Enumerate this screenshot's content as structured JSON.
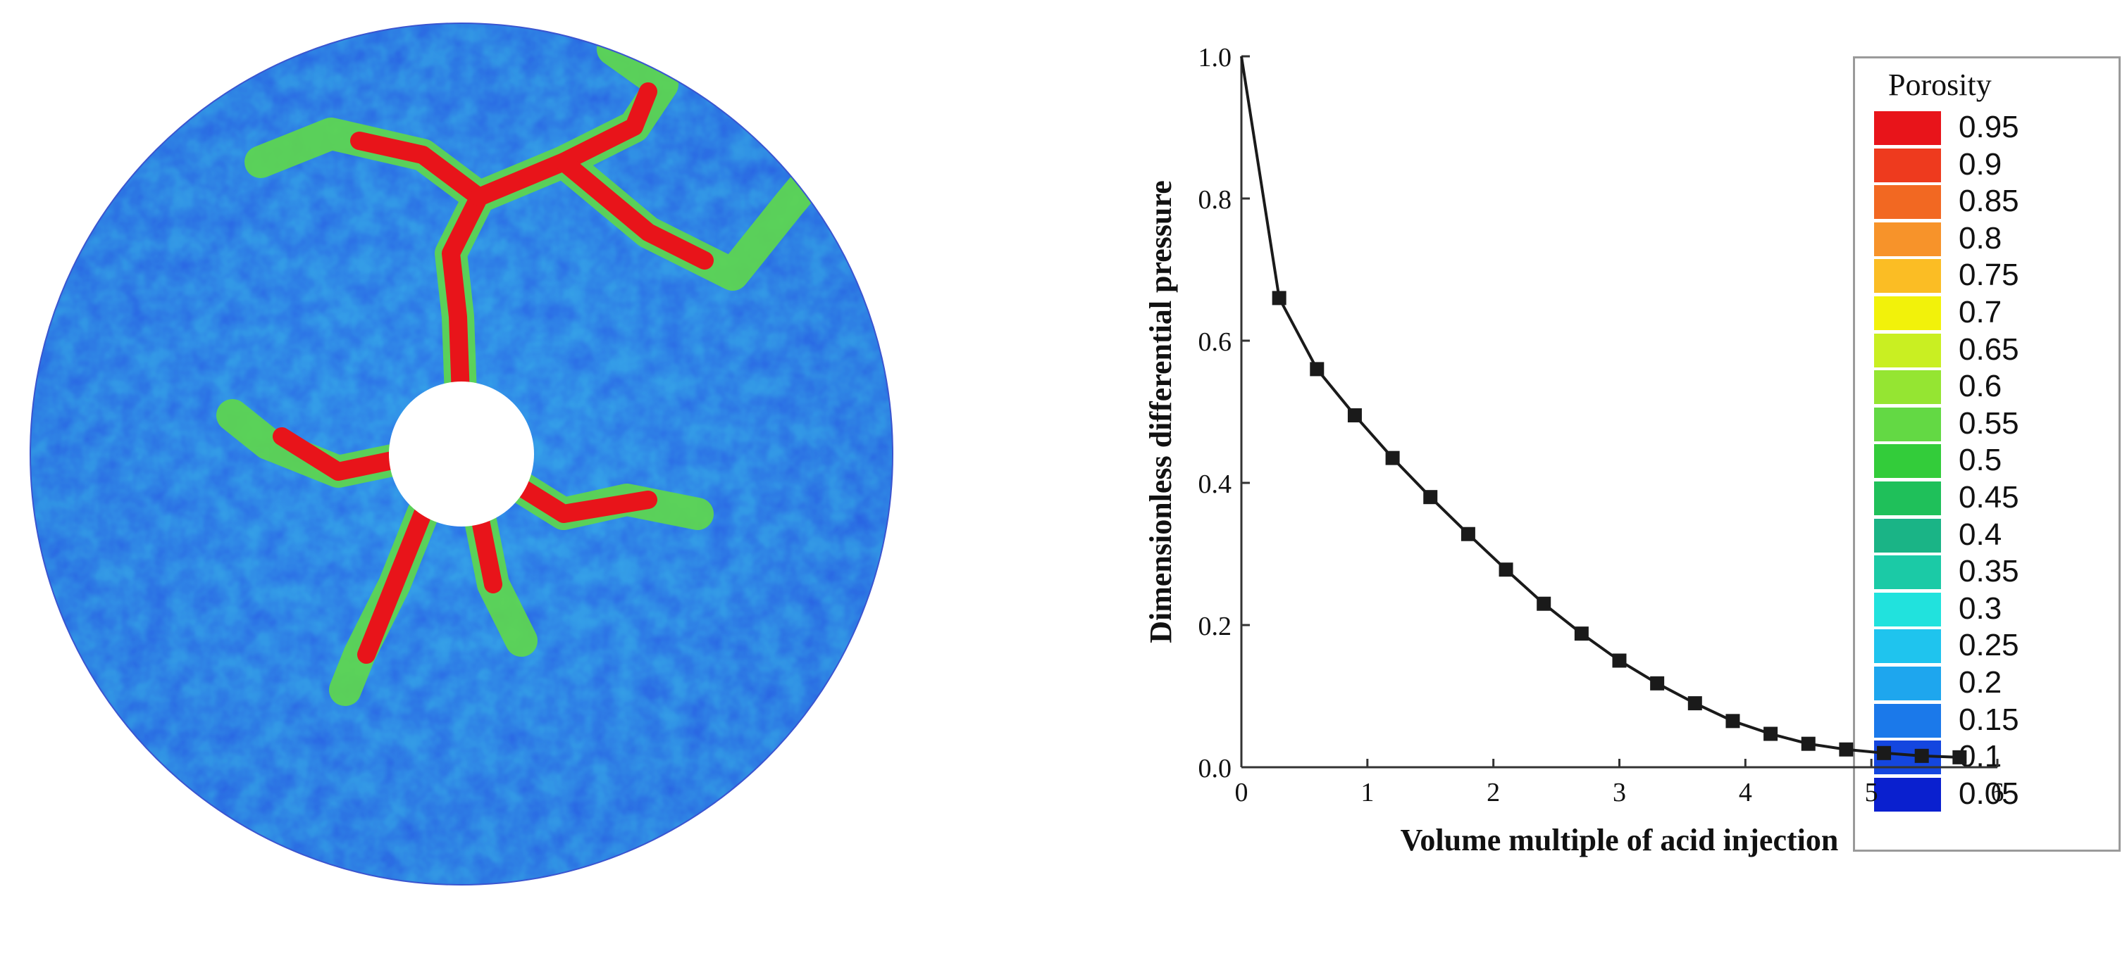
{
  "colorbar": {
    "title": "Porosity",
    "levels": [
      "0.95",
      "0.9",
      "0.85",
      "0.8",
      "0.75",
      "0.7",
      "0.65",
      "0.6",
      "0.55",
      "0.5",
      "0.45",
      "0.4",
      "0.35",
      "0.3",
      "0.25",
      "0.2",
      "0.15",
      "0.1",
      "0.05"
    ],
    "colors": [
      "#e8141a",
      "#ee3a1e",
      "#f26822",
      "#f7932a",
      "#fbbd24",
      "#f2f20a",
      "#c9ef22",
      "#95e532",
      "#63d944",
      "#33cc3a",
      "#1fc05a",
      "#1ab486",
      "#1bcaa6",
      "#21e2dd",
      "#1fc4ee",
      "#1ea6ee",
      "#1b79ea",
      "#1446df",
      "#0a20cf"
    ]
  },
  "chart_data": {
    "type": "line",
    "xlabel": "Volume multiple of acid injection",
    "ylabel": "Dimensionless differential pressure",
    "xlim": [
      0,
      6
    ],
    "ylim": [
      0.0,
      1.0
    ],
    "xticks": [
      "0",
      "1",
      "2",
      "3",
      "4",
      "5",
      "6"
    ],
    "yticks": [
      "0.0",
      "0.2",
      "0.4",
      "0.6",
      "0.8",
      "1.0"
    ],
    "x": [
      0,
      0.3,
      0.6,
      0.9,
      1.2,
      1.5,
      1.8,
      2.1,
      2.4,
      2.7,
      3.0,
      3.3,
      3.6,
      3.9,
      4.2,
      4.5,
      4.8,
      5.1,
      5.4,
      5.7
    ],
    "y": [
      1.0,
      0.66,
      0.56,
      0.495,
      0.435,
      0.38,
      0.328,
      0.278,
      0.23,
      0.188,
      0.15,
      0.118,
      0.09,
      0.065,
      0.047,
      0.033,
      0.025,
      0.02,
      0.016,
      0.014
    ],
    "markers": "square",
    "color": "#1a1a1a"
  }
}
